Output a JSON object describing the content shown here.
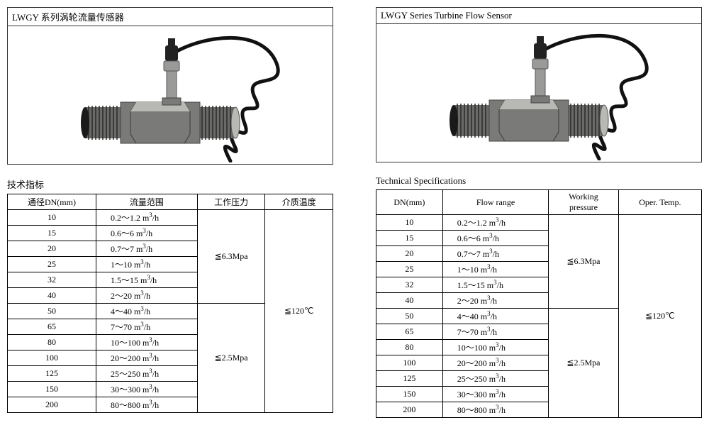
{
  "left": {
    "title": "LWGY 系列涡轮流量传感器",
    "section": "技术指标",
    "headers": [
      "通径DN(mm)",
      "流量范围",
      "工作压力",
      "介质温度"
    ],
    "pressure1": "≦6.3Mpa",
    "pressure2": "≦2.5Mpa",
    "temp": "≦120℃",
    "rows": [
      {
        "dn": "10",
        "flow": "0.2～1.2 m³/h"
      },
      {
        "dn": "15",
        "flow": "0.6～6 m³/h"
      },
      {
        "dn": "20",
        "flow": "0.7～7 m³/h"
      },
      {
        "dn": "25",
        "flow": "1～10 m³/h"
      },
      {
        "dn": "32",
        "flow": "1.5～15 m³/h"
      },
      {
        "dn": "40",
        "flow": "2～20 m³/h"
      },
      {
        "dn": "50",
        "flow": "4～40 m³/h"
      },
      {
        "dn": "65",
        "flow": "7～70 m³/h"
      },
      {
        "dn": "80",
        "flow": "10～100 m³/h"
      },
      {
        "dn": "100",
        "flow": "20～200 m³/h"
      },
      {
        "dn": "125",
        "flow": "25～250 m³/h"
      },
      {
        "dn": "150",
        "flow": "30～300 m³/h"
      },
      {
        "dn": "200",
        "flow": "80～800 m³/h"
      }
    ]
  },
  "right": {
    "title": "LWGY Series Turbine Flow Sensor",
    "section": "Technical Specifications",
    "headers": [
      "DN(mm)",
      "Flow range",
      "Working pressure",
      "Oper. Temp."
    ],
    "pressure1": "≦6.3Mpa",
    "pressure2": "≦2.5Mpa",
    "temp": "≦120℃",
    "rows": [
      {
        "dn": "10",
        "flow": "0.2～1.2 m³/h"
      },
      {
        "dn": "15",
        "flow": "0.6～6 m³/h"
      },
      {
        "dn": "20",
        "flow": "0.7～7 m³/h"
      },
      {
        "dn": "25",
        "flow": "1～10 m³/h"
      },
      {
        "dn": "32",
        "flow": "1.5～15 m³/h"
      },
      {
        "dn": "40",
        "flow": "2～20 m³/h"
      },
      {
        "dn": "50",
        "flow": "4～40 m³/h"
      },
      {
        "dn": "65",
        "flow": "7～70 m³/h"
      },
      {
        "dn": "80",
        "flow": "10～100 m³/h"
      },
      {
        "dn": "100",
        "flow": "20～200 m³/h"
      },
      {
        "dn": "125",
        "flow": "25～250 m³/h"
      },
      {
        "dn": "150",
        "flow": "30～300 m³/h"
      },
      {
        "dn": "200",
        "flow": "80～800 m³/h"
      }
    ]
  },
  "svg": {
    "body_fill": "#7a7a78",
    "body_hilite": "#b8b8b4",
    "thread_fill": "#6a6a68",
    "thread_line": "#2a2a28",
    "tube_fill": "#9a9a98",
    "plug_fill": "#222",
    "cable": "#111"
  }
}
